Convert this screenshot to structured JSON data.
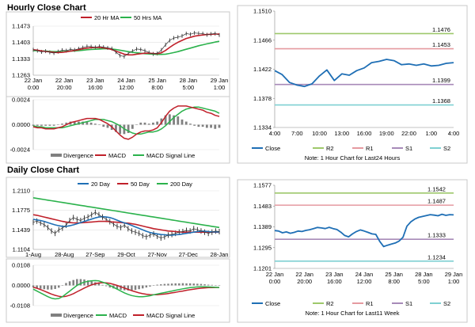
{
  "sections": {
    "hourly_title": "Hourly Close Chart",
    "daily_title": "Daily Close Chart"
  },
  "colors": {
    "close": "#1f6fb5",
    "ma_short": "#c0202a",
    "ma_long": "#2bb24c",
    "r2": "#9ec86b",
    "r1": "#e59aa0",
    "s1": "#a78ab8",
    "s2": "#7fd0d2",
    "bw_blue": "#1f6fb5",
    "divergence": "#808080",
    "frame": "#c9c9c9"
  },
  "chart_data": [
    {
      "id": "hourly_price",
      "type": "line",
      "legend": [
        "20 Hr MA",
        "50 Hrs MA"
      ],
      "ylim": [
        1.1263,
        1.1473
      ],
      "yticks": [
        "1.1473",
        "1.1403",
        "1.1333",
        "1.1263"
      ],
      "xticks": [
        "22 Jan\n0:00",
        "22 Jan\n20:00",
        "23 Jan\n16:00",
        "24 Jan\n12:00",
        "25 Jan\n8:00",
        "28 Jan\n5:00",
        "29 Jan\n1:00"
      ],
      "series": [
        {
          "name": "Close",
          "values": [
            1.1372,
            1.1368,
            1.1363,
            1.1366,
            1.1361,
            1.1358,
            1.1364,
            1.137,
            1.1368,
            1.1373,
            1.1371,
            1.1376,
            1.1381,
            1.1386,
            1.1385,
            1.1382,
            1.1386,
            1.1383,
            1.138,
            1.1377,
            1.1362,
            1.1347,
            1.1343,
            1.1356,
            1.1366,
            1.1375,
            1.1373,
            1.1368,
            1.136,
            1.1354,
            1.1356,
            1.1371,
            1.1393,
            1.1412,
            1.1422,
            1.1426,
            1.1431,
            1.1441,
            1.1438,
            1.1444,
            1.1442,
            1.1441,
            1.1436,
            1.1439,
            1.1441,
            1.1435
          ]
        },
        {
          "name": "20 Hr MA",
          "values": [
            1.1372,
            1.137,
            1.1367,
            1.1365,
            1.1363,
            1.1361,
            1.136,
            1.1361,
            1.1363,
            1.1366,
            1.1369,
            1.1372,
            1.1376,
            1.1379,
            1.1381,
            1.1382,
            1.1382,
            1.138,
            1.1377,
            1.1373,
            1.1366,
            1.136,
            1.1353,
            1.135,
            1.135,
            1.1353,
            1.1355,
            1.1357,
            1.1357,
            1.1356,
            1.1355,
            1.1359,
            1.1369,
            1.1382,
            1.1394,
            1.1404,
            1.1412,
            1.142,
            1.1425,
            1.143,
            1.1433,
            1.1435,
            1.1437,
            1.1438,
            1.1439,
            1.1439
          ]
        },
        {
          "name": "50 Hrs MA",
          "values": [
            1.1368,
            1.1368,
            1.1367,
            1.1366,
            1.1365,
            1.1364,
            1.1364,
            1.1364,
            1.1365,
            1.1366,
            1.1367,
            1.1368,
            1.137,
            1.1372,
            1.1373,
            1.1374,
            1.1375,
            1.1376,
            1.1376,
            1.1375,
            1.1373,
            1.137,
            1.1367,
            1.1364,
            1.1361,
            1.1359,
            1.1357,
            1.1355,
            1.1354,
            1.1353,
            1.1352,
            1.1352,
            1.1353,
            1.1356,
            1.136,
            1.1364,
            1.1369,
            1.1374,
            1.1379,
            1.1384,
            1.1389,
            1.1393,
            1.1397,
            1.1401,
            1.1405,
            1.1408
          ]
        }
      ]
    },
    {
      "id": "hourly_macd",
      "type": "line",
      "legend": [
        "Divergence",
        "MACD",
        "MACD Signal Line"
      ],
      "ylim": [
        -0.0024,
        0.0024
      ],
      "yticks": [
        "0.0024",
        "0.0000",
        "-0.0024"
      ],
      "series": [
        {
          "name": "MACD",
          "values": [
            -0.0002,
            -0.0003,
            -0.0003,
            -0.0004,
            -0.0004,
            -0.0004,
            -0.0003,
            -0.0002,
            0.0,
            0.0002,
            0.0003,
            0.0004,
            0.0005,
            0.0006,
            0.0006,
            0.0006,
            0.0005,
            0.0003,
            0.0001,
            -0.0002,
            -0.0006,
            -0.001,
            -0.0013,
            -0.0014,
            -0.0012,
            -0.0009,
            -0.0007,
            -0.0006,
            -0.0006,
            -0.0005,
            -0.0003,
            0.0002,
            0.0008,
            0.0013,
            0.0016,
            0.0018,
            0.0018,
            0.0018,
            0.0017,
            0.0016,
            0.0015,
            0.0014,
            0.0012,
            0.0011,
            0.0009,
            0.0008
          ]
        },
        {
          "name": "MACD Signal Line",
          "values": [
            -0.0001,
            -0.0002,
            -0.0002,
            -0.0003,
            -0.0003,
            -0.0003,
            -0.0003,
            -0.0003,
            -0.0002,
            -0.0001,
            0.0,
            0.0001,
            0.0002,
            0.0003,
            0.0004,
            0.0005,
            0.0005,
            0.0005,
            0.0004,
            0.0003,
            0.0001,
            -0.0001,
            -0.0004,
            -0.0006,
            -0.0008,
            -0.0009,
            -0.0009,
            -0.0008,
            -0.0007,
            -0.0007,
            -0.0006,
            -0.0004,
            -0.0001,
            0.0003,
            0.0007,
            0.001,
            0.0013,
            0.0015,
            0.0016,
            0.0017,
            0.0017,
            0.0016,
            0.0015,
            0.0014,
            0.0013,
            0.0011
          ]
        },
        {
          "name": "Divergence",
          "values": [
            -0.0001,
            -0.0001,
            -0.0001,
            -0.0001,
            -0.0001,
            -0.0001,
            0.0,
            0.0001,
            0.0002,
            0.0003,
            0.0003,
            0.0003,
            0.0003,
            0.0003,
            0.0002,
            0.0001,
            0.0,
            -0.0002,
            -0.0003,
            -0.0005,
            -0.0007,
            -0.0009,
            -0.0009,
            -0.0008,
            -0.0004,
            0.0,
            0.0002,
            0.0002,
            0.0001,
            0.0002,
            0.0003,
            0.0006,
            0.0009,
            0.001,
            0.0009,
            0.0008,
            0.0005,
            0.0003,
            0.0001,
            -0.0001,
            -0.0002,
            -0.0002,
            -0.0003,
            -0.0003,
            -0.0004,
            -0.0003
          ]
        }
      ]
    },
    {
      "id": "hourly_pivot",
      "type": "line",
      "ylim": [
        1.1334,
        1.151
      ],
      "yticks": [
        "1.1510",
        "1.1466",
        "1.1422",
        "1.1378",
        "1.1334"
      ],
      "xticks": [
        "4:00",
        "7:00",
        "10:00",
        "13:00",
        "16:00",
        "19:00",
        "22:00",
        "1:00",
        "4:00"
      ],
      "levels": [
        {
          "name": "R2",
          "value": 1.1476,
          "label": "1.1476"
        },
        {
          "name": "R1",
          "value": 1.1453,
          "label": "1.1453"
        },
        {
          "name": "S1",
          "value": 1.1399,
          "label": "1.1399"
        },
        {
          "name": "S2",
          "value": 1.1368,
          "label": "1.1368"
        }
      ],
      "series": [
        {
          "name": "Close",
          "values": [
            1.142,
            1.1414,
            1.1402,
            1.1398,
            1.1396,
            1.14,
            1.1412,
            1.1421,
            1.1405,
            1.1415,
            1.1413,
            1.142,
            1.1424,
            1.1432,
            1.1434,
            1.1437,
            1.1435,
            1.1429,
            1.143,
            1.1428,
            1.143,
            1.1427,
            1.1428,
            1.1431,
            1.1432
          ]
        }
      ],
      "legend": [
        "Close",
        "R2",
        "R1",
        "S1",
        "S2"
      ],
      "note": "Note: 1 Hour Chart for Last24 Hours"
    },
    {
      "id": "daily_price",
      "type": "line",
      "legend": [
        "20 Day",
        "50 Day",
        "200 Day"
      ],
      "ylim": [
        1.1104,
        1.211
      ],
      "yticks": [
        "1.2110",
        "1.1775",
        "1.1439",
        "1.1104"
      ],
      "xticks": [
        "1-Aug",
        "28-Aug",
        "27-Sep",
        "29-Oct",
        "27-Nov",
        "27-Dec",
        "28-Jan"
      ],
      "series": [
        {
          "name": "Close",
          "values": [
            1.157,
            1.159,
            1.156,
            1.153,
            1.148,
            1.142,
            1.138,
            1.144,
            1.147,
            1.152,
            1.16,
            1.165,
            1.162,
            1.16,
            1.164,
            1.166,
            1.17,
            1.174,
            1.17,
            1.166,
            1.162,
            1.158,
            1.154,
            1.15,
            1.148,
            1.152,
            1.146,
            1.142,
            1.14,
            1.138,
            1.134,
            1.132,
            1.135,
            1.137,
            1.133,
            1.13,
            1.132,
            1.135,
            1.136,
            1.138,
            1.14,
            1.141,
            1.143,
            1.142,
            1.146,
            1.144,
            1.142,
            1.14,
            1.138,
            1.14,
            1.142,
            1.141
          ]
        },
        {
          "name": "20 Day",
          "values": [
            1.162,
            1.161,
            1.16,
            1.1585,
            1.1565,
            1.1545,
            1.1525,
            1.151,
            1.15,
            1.15,
            1.151,
            1.1525,
            1.1545,
            1.1565,
            1.1585,
            1.1605,
            1.1625,
            1.1645,
            1.166,
            1.1665,
            1.166,
            1.165,
            1.163,
            1.1605,
            1.158,
            1.156,
            1.154,
            1.1515,
            1.149,
            1.1465,
            1.144,
            1.1415,
            1.1395,
            1.138,
            1.137,
            1.136,
            1.1355,
            1.135,
            1.135,
            1.1355,
            1.136,
            1.137,
            1.138,
            1.139,
            1.14,
            1.141,
            1.1415,
            1.1415,
            1.141,
            1.1405,
            1.1405,
            1.1405
          ]
        },
        {
          "name": "50 Day",
          "values": [
            1.17,
            1.169,
            1.1675,
            1.166,
            1.1645,
            1.163,
            1.1615,
            1.16,
            1.1585,
            1.1575,
            1.1565,
            1.156,
            1.156,
            1.156,
            1.1565,
            1.157,
            1.1575,
            1.158,
            1.1585,
            1.1585,
            1.1585,
            1.158,
            1.1575,
            1.157,
            1.1565,
            1.156,
            1.1555,
            1.1545,
            1.1535,
            1.152,
            1.1505,
            1.149,
            1.1475,
            1.146,
            1.145,
            1.144,
            1.143,
            1.142,
            1.1415,
            1.141,
            1.1405,
            1.14,
            1.14,
            1.14,
            1.14,
            1.14,
            1.14,
            1.14,
            1.14,
            1.14,
            1.14,
            1.14
          ]
        },
        {
          "name": "200 Day",
          "values": [
            1.199,
            1.198,
            1.197,
            1.196,
            1.195,
            1.194,
            1.193,
            1.192,
            1.191,
            1.19,
            1.189,
            1.188,
            1.187,
            1.186,
            1.185,
            1.184,
            1.183,
            1.182,
            1.181,
            1.18,
            1.179,
            1.178,
            1.177,
            1.176,
            1.175,
            1.174,
            1.173,
            1.172,
            1.171,
            1.17,
            1.169,
            1.168,
            1.167,
            1.166,
            1.165,
            1.164,
            1.163,
            1.162,
            1.161,
            1.16,
            1.159,
            1.158,
            1.157,
            1.156,
            1.155,
            1.154,
            1.153,
            1.152,
            1.151,
            1.15,
            1.149,
            1.148
          ]
        }
      ]
    },
    {
      "id": "daily_macd",
      "type": "line",
      "legend": [
        "Divergence",
        "MACD",
        "MACD Signal Line"
      ],
      "ylim": [
        -0.0108,
        0.0108
      ],
      "yticks": [
        "0.0108",
        "0.0000",
        "-0.0108"
      ],
      "series": [
        {
          "name": "MACD",
          "values": [
            -0.002,
            -0.003,
            -0.004,
            -0.005,
            -0.006,
            -0.0068,
            -0.0072,
            -0.007,
            -0.006,
            -0.0045,
            -0.003,
            -0.0015,
            0.0,
            0.001,
            0.0018,
            0.0022,
            0.0025,
            0.0026,
            0.0024,
            0.0018,
            0.001,
            0.0,
            -0.001,
            -0.002,
            -0.003,
            -0.004,
            -0.0048,
            -0.0054,
            -0.0058,
            -0.006,
            -0.006,
            -0.0058,
            -0.0055,
            -0.005,
            -0.0046,
            -0.0042,
            -0.0038,
            -0.0034,
            -0.003,
            -0.0026,
            -0.0022,
            -0.0018,
            -0.0015,
            -0.0012,
            -0.001,
            -0.0008,
            -0.0007,
            -0.0007,
            -0.0008,
            -0.0009,
            -0.001,
            -0.0011
          ]
        },
        {
          "name": "MACD Signal Line",
          "values": [
            -0.001,
            -0.0015,
            -0.0022,
            -0.003,
            -0.0038,
            -0.0046,
            -0.0053,
            -0.0058,
            -0.006,
            -0.0058,
            -0.0052,
            -0.0044,
            -0.0034,
            -0.0024,
            -0.0014,
            -0.0005,
            0.0003,
            0.0009,
            0.0013,
            0.0015,
            0.0014,
            0.0011,
            0.0006,
            0.0,
            -0.0007,
            -0.0014,
            -0.0021,
            -0.0028,
            -0.0034,
            -0.004,
            -0.0044,
            -0.0047,
            -0.0049,
            -0.005,
            -0.005,
            -0.0048,
            -0.0046,
            -0.0043,
            -0.004,
            -0.0037,
            -0.0033,
            -0.003,
            -0.0026,
            -0.0023,
            -0.002,
            -0.0017,
            -0.0015,
            -0.0013,
            -0.0012,
            -0.0012,
            -0.0011,
            -0.0011
          ]
        },
        {
          "name": "Divergence",
          "values": [
            -0.001,
            -0.0015,
            -0.0018,
            -0.002,
            -0.0022,
            -0.0022,
            -0.0019,
            -0.0012,
            0.0,
            0.0013,
            0.0022,
            0.0029,
            0.0034,
            0.0034,
            0.0032,
            0.0027,
            0.0022,
            0.0017,
            0.0011,
            0.0003,
            -0.0004,
            -0.0011,
            -0.0016,
            -0.002,
            -0.0023,
            -0.0026,
            -0.0027,
            -0.0026,
            -0.0024,
            -0.002,
            -0.0016,
            -0.0011,
            -0.0006,
            0.0,
            0.0004,
            0.0006,
            0.0008,
            0.0009,
            0.001,
            0.0011,
            0.0011,
            0.0012,
            0.0011,
            0.0011,
            0.001,
            0.0009,
            0.0008,
            0.0006,
            0.0004,
            0.0003,
            0.0001,
            0.0
          ]
        }
      ]
    },
    {
      "id": "daily_pivot",
      "type": "line",
      "ylim": [
        1.1201,
        1.1577
      ],
      "yticks": [
        "1.1577",
        "1.1483",
        "1.1389",
        "1.1295",
        "1.1201"
      ],
      "xticks": [
        "22 Jan\n0:00",
        "22 Jan\n20:00",
        "23 Jan\n16:00",
        "24 Jan\n12:00",
        "25 Jan\n8:00",
        "28 Jan\n5:00",
        "29 Jan\n1:00"
      ],
      "levels": [
        {
          "name": "R2",
          "value": 1.1542,
          "label": "1.1542"
        },
        {
          "name": "R1",
          "value": 1.1487,
          "label": "1.1487"
        },
        {
          "name": "S1",
          "value": 1.1333,
          "label": "1.1333"
        },
        {
          "name": "S2",
          "value": 1.1234,
          "label": "1.1234"
        }
      ],
      "series": [
        {
          "name": "Close",
          "values": [
            1.1372,
            1.137,
            1.1362,
            1.1366,
            1.136,
            1.1364,
            1.137,
            1.1368,
            1.1373,
            1.1376,
            1.1381,
            1.1386,
            1.1384,
            1.1381,
            1.1387,
            1.1381,
            1.1377,
            1.1365,
            1.135,
            1.1344,
            1.1357,
            1.1368,
            1.1375,
            1.137,
            1.1364,
            1.1357,
            1.1355,
            1.1323,
            1.13,
            1.1306,
            1.1311,
            1.1316,
            1.1325,
            1.1342,
            1.1392,
            1.1412,
            1.1424,
            1.1432,
            1.1436,
            1.144,
            1.1444,
            1.1442,
            1.1439,
            1.1446,
            1.1441,
            1.1444,
            1.1443
          ]
        }
      ],
      "legend": [
        "Close",
        "R2",
        "R1",
        "S1",
        "S2"
      ],
      "note": "Note: 1 Hour Chart for Last11 Week"
    }
  ]
}
